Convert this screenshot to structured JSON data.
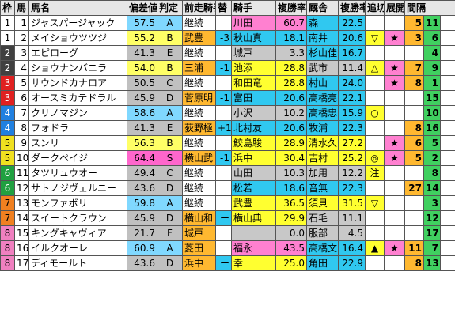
{
  "header": {
    "waku": "枠",
    "uma": "馬",
    "name": "馬名",
    "hensa": "偏差値",
    "hantei": "判定",
    "prev_jockey": "前走騎手",
    "change": "替",
    "jockey": "騎手",
    "win_rate": "複勝率",
    "trainer": "厩舎",
    "trainer_rate": "複勝率",
    "oikiri": "追切",
    "tenkai": "展開",
    "interval": "間隔"
  },
  "rows": [
    {
      "waku": "1",
      "num": "1",
      "name": "ジャスパージャック",
      "hensa": "57.5",
      "grade": "A",
      "prev": "継続",
      "change": "",
      "jockey": "川田",
      "jrate": "60.7",
      "trainer": "森",
      "trate": "22.5",
      "oikiri": "",
      "tenkai": "",
      "iv1": "5",
      "iv2": "11"
    },
    {
      "waku": "1",
      "num": "2",
      "name": "メイショウツツジ",
      "hensa": "55.2",
      "grade": "B",
      "prev": "武豊",
      "change": "-3",
      "jockey": "秋山真",
      "jrate": "18.1",
      "trainer": "南井",
      "trate": "20.6",
      "oikiri": "▽",
      "tenkai": "★",
      "iv1": "3",
      "iv2": "6"
    },
    {
      "waku": "2",
      "num": "3",
      "name": "エピローグ",
      "hensa": "41.3",
      "grade": "E",
      "prev": "継続",
      "change": "",
      "jockey": "城戸",
      "jrate": "3.3",
      "trainer": "杉山佳",
      "trate": "16.7",
      "oikiri": "",
      "tenkai": "",
      "iv1": "",
      "iv2": "4"
    },
    {
      "waku": "2",
      "num": "4",
      "name": "ショウナンバニラ",
      "hensa": "54.0",
      "grade": "B",
      "prev": "三浦",
      "change": "-1",
      "jockey": "池添",
      "jrate": "28.8",
      "trainer": "武市",
      "trate": "11.4",
      "oikiri": "△",
      "tenkai": "★",
      "iv1": "7",
      "iv2": "9"
    },
    {
      "waku": "3",
      "num": "5",
      "name": "サウンドカナロア",
      "hensa": "50.5",
      "grade": "C",
      "prev": "継続",
      "change": "",
      "jockey": "和田竜",
      "jrate": "28.8",
      "trainer": "村山",
      "trate": "24.0",
      "oikiri": "",
      "tenkai": "★",
      "iv1": "8",
      "iv2": "1"
    },
    {
      "waku": "3",
      "num": "6",
      "name": "オースミカテドラル",
      "hensa": "45.9",
      "grade": "D",
      "prev": "菅原明",
      "change": "-1",
      "jockey": "富田",
      "jrate": "20.6",
      "trainer": "高橋亮",
      "trate": "22.1",
      "oikiri": "",
      "tenkai": "",
      "iv1": "",
      "iv2": "15"
    },
    {
      "waku": "4",
      "num": "7",
      "name": "クリノマジン",
      "hensa": "58.6",
      "grade": "A",
      "prev": "継続",
      "change": "",
      "jockey": "小沢",
      "jrate": "10.2",
      "trainer": "高橋忠",
      "trate": "15.9",
      "oikiri": "○",
      "tenkai": "",
      "iv1": "",
      "iv2": "10"
    },
    {
      "waku": "4",
      "num": "8",
      "name": "フォドラ",
      "hensa": "41.3",
      "grade": "E",
      "prev": "荻野極",
      "change": "+1",
      "jockey": "北村友",
      "jrate": "20.6",
      "trainer": "牧浦",
      "trate": "22.3",
      "oikiri": "",
      "tenkai": "",
      "iv1": "8",
      "iv2": "16"
    },
    {
      "waku": "5",
      "num": "9",
      "name": "スンリ",
      "hensa": "56.3",
      "grade": "B",
      "prev": "継続",
      "change": "",
      "jockey": "鮫島駿",
      "jrate": "28.9",
      "trainer": "清水久",
      "trate": "27.2",
      "oikiri": "",
      "tenkai": "★",
      "iv1": "6",
      "iv2": "5"
    },
    {
      "waku": "5",
      "num": "10",
      "name": "ダークペイジ",
      "hensa": "64.4",
      "grade": "S",
      "prev": "横山武",
      "change": "-1",
      "jockey": "浜中",
      "jrate": "30.4",
      "trainer": "吉村",
      "trate": "25.2",
      "oikiri": "◎",
      "tenkai": "★",
      "iv1": "5",
      "iv2": "2"
    },
    {
      "waku": "6",
      "num": "11",
      "name": "タツリュウオー",
      "hensa": "49.4",
      "grade": "C",
      "prev": "継続",
      "change": "",
      "jockey": "山田",
      "jrate": "10.3",
      "trainer": "加用",
      "trate": "12.2",
      "oikiri": "注",
      "tenkai": "",
      "iv1": "",
      "iv2": "8"
    },
    {
      "waku": "6",
      "num": "12",
      "name": "サトノジヴェルニー",
      "hensa": "43.6",
      "grade": "D",
      "prev": "継続",
      "change": "",
      "jockey": "松若",
      "jrate": "18.6",
      "trainer": "音無",
      "trate": "22.3",
      "oikiri": "",
      "tenkai": "",
      "iv1": "27",
      "iv2": "14"
    },
    {
      "waku": "7",
      "num": "13",
      "name": "モンファボリ",
      "hensa": "59.8",
      "grade": "A",
      "prev": "継続",
      "change": "",
      "jockey": "武豊",
      "jrate": "36.5",
      "trainer": "須貝",
      "trate": "31.5",
      "oikiri": "▽",
      "tenkai": "",
      "iv1": "",
      "iv2": "3"
    },
    {
      "waku": "7",
      "num": "14",
      "name": "スイートクラウン",
      "hensa": "45.9",
      "grade": "D",
      "prev": "横山和",
      "change": "ー",
      "jockey": "横山典",
      "jrate": "29.9",
      "trainer": "石毛",
      "trate": "11.1",
      "oikiri": "",
      "tenkai": "",
      "iv1": "",
      "iv2": "12"
    },
    {
      "waku": "8",
      "num": "15",
      "name": "キングキャヴィア",
      "hensa": "21.7",
      "grade": "F",
      "prev": "城戸",
      "change": "",
      "jockey": "",
      "jrate": "0.0",
      "trainer": "服部",
      "trate": "4.5",
      "oikiri": "",
      "tenkai": "",
      "iv1": "",
      "iv2": "17"
    },
    {
      "waku": "8",
      "num": "16",
      "name": "イルクオーレ",
      "hensa": "60.9",
      "grade": "A",
      "prev": "菱田",
      "change": "",
      "jockey": "福永",
      "jrate": "43.5",
      "trainer": "高橋文",
      "trate": "16.4",
      "oikiri": "▲",
      "tenkai": "★",
      "iv1": "11",
      "iv2": "7"
    },
    {
      "waku": "8",
      "num": "17",
      "name": "ディモールト",
      "hensa": "43.6",
      "grade": "D",
      "prev": "浜中",
      "change": "ー",
      "jockey": "幸",
      "jrate": "25.0",
      "trainer": "角田",
      "trate": "22.9",
      "oikiri": "",
      "tenkai": "",
      "iv1": "8",
      "iv2": "13"
    }
  ],
  "colors": {
    "waku": [
      "#ffffff",
      "#ffffff",
      "#404040",
      "#e02020",
      "#2080e0",
      "#f0e020",
      "#20a040",
      "#f08020",
      "#f080c0"
    ],
    "hensa_S": "#ff66cc",
    "hensa_A": "#80d8ff",
    "hensa_B": "#ffff66",
    "hensa_low": "#c0c0c0",
    "orange": "#ffb830",
    "green": "#40d060",
    "cyan": "#30c8f0",
    "yellow": "#ffff30",
    "pink": "#ff80d0",
    "gray": "#c8c8c8"
  }
}
